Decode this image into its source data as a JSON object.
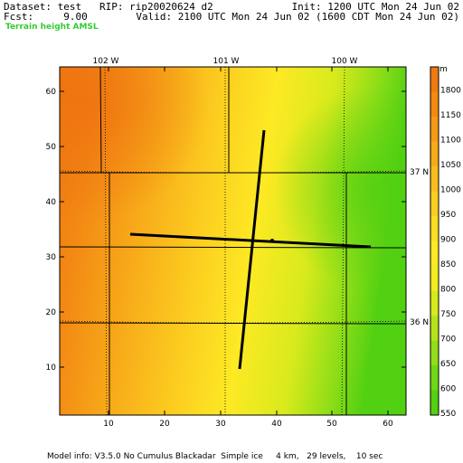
{
  "header": {
    "dataset": "Dataset: test   RIP: rip20020624 d2",
    "init": "Init: 1200 UTC Mon 24 Jun 02",
    "fcst": "Fcst:     9.00",
    "valid": "Valid: 2100 UTC Mon 24 Jun 02 (1600 CDT Mon 24 Jun 02)",
    "field": "Terrain height AMSL"
  },
  "map": {
    "x_ticks": [
      "10",
      "20",
      "30",
      "40",
      "50",
      "60"
    ],
    "y_ticks": [
      "10",
      "20",
      "30",
      "40",
      "50",
      "60"
    ],
    "lon_labels": [
      "102 W",
      "101 W",
      "100 W"
    ],
    "lat_labels": [
      "37 N",
      "36 N"
    ]
  },
  "colorbar": {
    "unit": "m",
    "levels": [
      "1800",
      "1150",
      "1100",
      "1050",
      "1000",
      "950",
      "900",
      "850",
      "800",
      "750",
      "700",
      "650",
      "600",
      "550"
    ],
    "colors": [
      "#f07a10",
      "#f38a10",
      "#f59a14",
      "#f7ab18",
      "#f9bc1c",
      "#fbcd20",
      "#fcdd22",
      "#fde924",
      "#f4ec20",
      "#d8ea1c",
      "#b6e41a",
      "#92de18",
      "#6fd716",
      "#52d012"
    ]
  },
  "footer": {
    "model_info": "Model info: V3.5.0 No Cumulus Blackadar  Simple ice     4 km,   29 levels,    10 sec"
  }
}
